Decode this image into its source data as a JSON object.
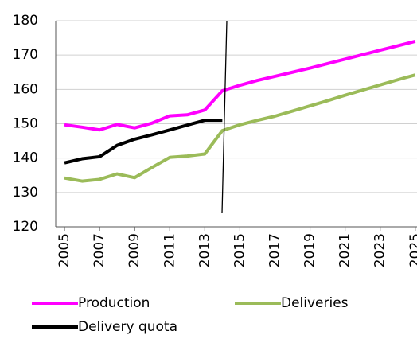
{
  "chart_data": {
    "type": "line",
    "x": [
      2005,
      2006,
      2007,
      2008,
      2009,
      2010,
      2011,
      2012,
      2013,
      2014,
      2015,
      2016,
      2017,
      2018,
      2019,
      2020,
      2021,
      2022,
      2023,
      2024,
      2025
    ],
    "series": [
      {
        "name": "Production",
        "color": "#ff00ff",
        "values": [
          149.7,
          149.0,
          148.2,
          149.8,
          148.8,
          150.2,
          152.3,
          152.6,
          154.0,
          159.6,
          161.2,
          162.6,
          163.8,
          165.0,
          166.2,
          167.5,
          168.8,
          170.1,
          171.4,
          172.7,
          174.0
        ]
      },
      {
        "name": "Deliveries",
        "color": "#9bbb59",
        "values": [
          134.2,
          133.3,
          133.8,
          135.4,
          134.3,
          137.3,
          140.2,
          140.6,
          141.2,
          148.0,
          149.7,
          151.0,
          152.2,
          153.7,
          155.2,
          156.7,
          158.3,
          159.8,
          161.3,
          162.8,
          164.2
        ]
      },
      {
        "name": "Delivery quota",
        "color": "#000000",
        "values": [
          138.6,
          139.8,
          140.4,
          143.7,
          145.5,
          146.8,
          148.2,
          149.6,
          151.0,
          151.0,
          null,
          null,
          null,
          null,
          null,
          null,
          null,
          null,
          null,
          null,
          null
        ]
      }
    ],
    "xlim": [
      2004.5,
      2025.1
    ],
    "xticks": [
      2005,
      2007,
      2009,
      2011,
      2013,
      2015,
      2017,
      2019,
      2021,
      2023,
      2025
    ],
    "ylim": [
      120,
      180
    ],
    "yticks": [
      120,
      130,
      140,
      150,
      160,
      170,
      180
    ],
    "grid": true,
    "legend": "bottom"
  }
}
